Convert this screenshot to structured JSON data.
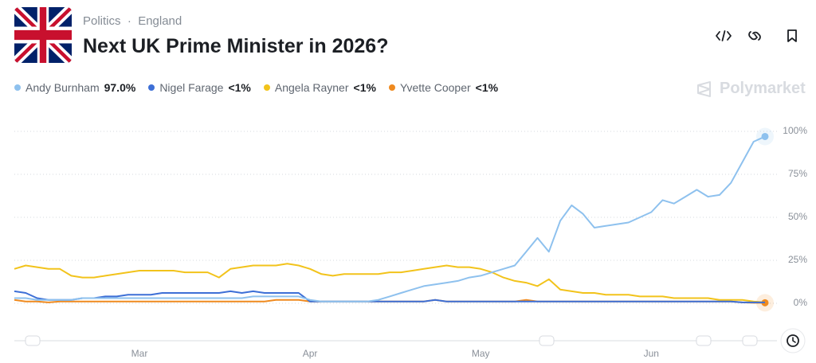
{
  "header": {
    "category": "Politics",
    "subcategory": "England",
    "title": "Next UK Prime Minister in 2026?",
    "brand": "Polymarket"
  },
  "chart_data": {
    "type": "line",
    "categories": [
      null,
      null,
      null,
      null,
      null,
      null,
      null,
      null,
      null,
      null,
      null,
      "Mar",
      null,
      null,
      null,
      null,
      null,
      null,
      null,
      null,
      null,
      null,
      null,
      null,
      null,
      null,
      "Apr",
      null,
      null,
      null,
      null,
      null,
      null,
      null,
      null,
      null,
      null,
      null,
      null,
      null,
      null,
      "May",
      null,
      null,
      null,
      null,
      null,
      null,
      null,
      null,
      null,
      null,
      null,
      null,
      null,
      null,
      "Jun",
      null,
      null,
      null,
      null,
      null,
      null,
      null,
      null,
      null,
      null
    ],
    "series": [
      {
        "name": "Andy Burnham",
        "legend_value": "97.0%",
        "color": "#8ec1ee",
        "end_dot": true,
        "values": [
          3,
          3,
          2,
          2,
          2,
          2,
          3,
          3,
          3,
          3,
          3,
          3,
          3,
          3,
          3,
          3,
          3,
          3,
          3,
          3,
          3,
          4,
          4,
          4,
          4,
          4,
          2,
          1,
          1,
          1,
          1,
          1,
          2,
          4,
          6,
          8,
          10,
          11,
          12,
          13,
          15,
          16,
          18,
          20,
          22,
          30,
          38,
          30,
          48,
          57,
          52,
          44,
          45,
          46,
          47,
          50,
          53,
          60,
          58,
          62,
          66,
          62,
          63,
          70,
          82,
          94,
          97
        ]
      },
      {
        "name": "Nigel Farage",
        "legend_value": "<1%",
        "color": "#3d6fd6",
        "end_dot": false,
        "values": [
          7,
          6,
          3,
          2,
          2,
          2,
          3,
          3,
          4,
          4,
          5,
          5,
          5,
          6,
          6,
          6,
          6,
          6,
          6,
          7,
          6,
          7,
          6,
          6,
          6,
          6,
          1,
          1,
          1,
          1,
          1,
          1,
          1,
          1,
          1,
          1,
          1,
          2,
          1,
          1,
          1,
          1,
          1,
          1,
          1,
          1,
          1,
          1,
          1,
          1,
          1,
          1,
          1,
          1,
          1,
          1,
          1,
          1,
          1,
          1,
          1,
          1,
          1,
          1,
          0.5,
          0.5,
          0.5
        ]
      },
      {
        "name": "Angela Rayner",
        "legend_value": "<1%",
        "color": "#f2c31b",
        "end_dot": false,
        "values": [
          20,
          22,
          21,
          20,
          20,
          16,
          15,
          15,
          16,
          17,
          18,
          19,
          19,
          19,
          19,
          18,
          18,
          18,
          15,
          20,
          21,
          22,
          22,
          22,
          23,
          22,
          20,
          17,
          16,
          17,
          17,
          17,
          17,
          18,
          18,
          19,
          20,
          21,
          22,
          21,
          21,
          20,
          18,
          15,
          13,
          12,
          10,
          14,
          8,
          7,
          6,
          6,
          5,
          5,
          5,
          4,
          4,
          4,
          3,
          3,
          3,
          3,
          2,
          2,
          2,
          1,
          0.5
        ]
      },
      {
        "name": "Yvette Cooper",
        "legend_value": "<1%",
        "color": "#ef8a1f",
        "end_dot": true,
        "values": [
          2,
          1,
          1,
          0.5,
          1,
          1,
          1,
          1,
          1,
          1,
          1,
          1,
          1,
          1,
          1,
          1,
          1,
          1,
          1,
          1,
          1,
          1,
          1,
          2,
          2,
          2,
          1,
          1,
          1,
          1,
          1,
          1,
          1,
          1,
          1,
          1,
          1,
          2,
          1,
          1,
          1,
          1,
          1,
          1,
          1,
          2,
          1,
          1,
          1,
          1,
          1,
          1,
          1,
          1,
          1,
          1,
          1,
          1,
          1,
          1,
          1,
          1,
          1,
          1,
          0.5,
          0.3,
          0.3
        ]
      }
    ],
    "ylim": [
      0,
      100
    ],
    "yticks": [
      {
        "value": 0,
        "label": "0%"
      },
      {
        "value": 25,
        "label": "25%"
      },
      {
        "value": 50,
        "label": "50%"
      },
      {
        "value": 75,
        "label": "75%"
      },
      {
        "value": 100,
        "label": "100%"
      }
    ],
    "grid": true
  }
}
